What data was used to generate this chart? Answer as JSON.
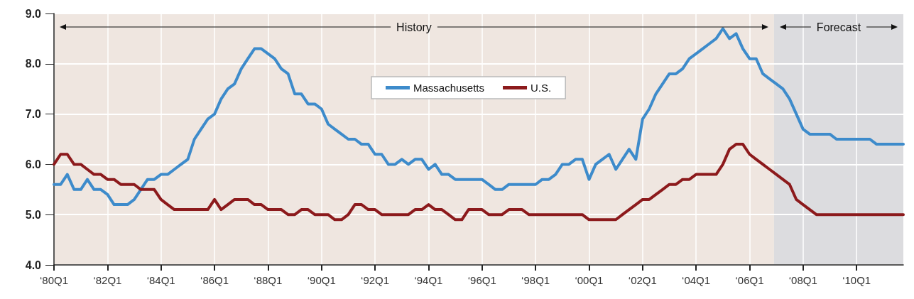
{
  "chart_data": {
    "type": "line",
    "xlim": [
      "1980-01",
      "2011-10"
    ],
    "xticks": [
      {
        "value": "1980-01",
        "label": "‘80Q1"
      },
      {
        "value": "1982-01",
        "label": "‘82Q1"
      },
      {
        "value": "1984-01",
        "label": "‘84Q1"
      },
      {
        "value": "1986-01",
        "label": "‘86Q1"
      },
      {
        "value": "1988-01",
        "label": "‘88Q1"
      },
      {
        "value": "1990-01",
        "label": "‘90Q1"
      },
      {
        "value": "1992-01",
        "label": "‘92Q1"
      },
      {
        "value": "1994-01",
        "label": "‘94Q1"
      },
      {
        "value": "1996-01",
        "label": "‘96Q1"
      },
      {
        "value": "1998-01",
        "label": "‘98Q1"
      },
      {
        "value": "2000-01",
        "label": "‘00Q1"
      },
      {
        "value": "2002-01",
        "label": "‘02Q1"
      },
      {
        "value": "2004-01",
        "label": "‘04Q1"
      },
      {
        "value": "2006-01",
        "label": "‘06Q1"
      },
      {
        "value": "2008-01",
        "label": "‘08Q1"
      },
      {
        "value": "2010-01",
        "label": "‘10Q1"
      }
    ],
    "ylim": [
      4,
      9
    ],
    "yticks": [
      {
        "value": 4,
        "label": "4.0"
      },
      {
        "value": 5,
        "label": "5.0"
      },
      {
        "value": 6,
        "label": "6.0"
      },
      {
        "value": 7,
        "label": "7.0"
      },
      {
        "value": 8,
        "label": "8.0"
      },
      {
        "value": 9,
        "label": "9.0"
      }
    ],
    "grid": true,
    "legend": "top",
    "marker": "none",
    "line_style": "solid",
    "bands": [
      {
        "axis": "x",
        "from": "1980-01",
        "to": "2006-12",
        "label": "History",
        "color": "#efe6e0"
      },
      {
        "axis": "x",
        "from": "2006-12",
        "to": "2011-10",
        "label": "Forecast",
        "color": "#dcdcdf"
      }
    ],
    "series": [
      {
        "name": "Massachusetts",
        "color": "#3d8bcb",
        "values": [
          5.6,
          5.6,
          5.8,
          5.5,
          5.5,
          5.7,
          5.5,
          5.5,
          5.4,
          5.2,
          5.2,
          5.2,
          5.3,
          5.5,
          5.7,
          5.7,
          5.8,
          5.8,
          5.9,
          6.0,
          6.1,
          6.5,
          6.7,
          6.9,
          7.0,
          7.3,
          7.5,
          7.6,
          7.9,
          8.1,
          8.3,
          8.3,
          8.2,
          8.1,
          7.9,
          7.8,
          7.4,
          7.4,
          7.2,
          7.2,
          7.1,
          6.8,
          6.7,
          6.6,
          6.5,
          6.5,
          6.4,
          6.4,
          6.2,
          6.2,
          6.0,
          6.0,
          6.1,
          6.0,
          6.1,
          6.1,
          5.9,
          6.0,
          5.8,
          5.8,
          5.7,
          5.7,
          5.7,
          5.7,
          5.7,
          5.6,
          5.5,
          5.5,
          5.6,
          5.6,
          5.6,
          5.6,
          5.6,
          5.7,
          5.7,
          5.8,
          6.0,
          6.0,
          6.1,
          6.1,
          5.7,
          6.0,
          6.1,
          6.2,
          5.9,
          6.1,
          6.3,
          6.1,
          6.9,
          7.1,
          7.4,
          7.6,
          7.8,
          7.8,
          7.9,
          8.1,
          8.2,
          8.3,
          8.4,
          8.5,
          8.7,
          8.5,
          8.6,
          8.3,
          8.1,
          8.1,
          7.8,
          7.7,
          7.6,
          7.5,
          7.3,
          7.0,
          6.7,
          6.6,
          6.6,
          6.6,
          6.6,
          6.5,
          6.5,
          6.5,
          6.5,
          6.5,
          6.5,
          6.4,
          6.4,
          6.4,
          6.4,
          6.4
        ]
      },
      {
        "name": "U.S.",
        "color": "#8c1a1c",
        "values": [
          6.0,
          6.2,
          6.2,
          6.0,
          6.0,
          5.9,
          5.8,
          5.8,
          5.7,
          5.7,
          5.6,
          5.6,
          5.6,
          5.5,
          5.5,
          5.5,
          5.3,
          5.2,
          5.1,
          5.1,
          5.1,
          5.1,
          5.1,
          5.1,
          5.3,
          5.1,
          5.2,
          5.3,
          5.3,
          5.3,
          5.2,
          5.2,
          5.1,
          5.1,
          5.1,
          5.0,
          5.0,
          5.1,
          5.1,
          5.0,
          5.0,
          5.0,
          4.9,
          4.9,
          5.0,
          5.2,
          5.2,
          5.1,
          5.1,
          5.0,
          5.0,
          5.0,
          5.0,
          5.0,
          5.1,
          5.1,
          5.2,
          5.1,
          5.1,
          5.0,
          4.9,
          4.9,
          5.1,
          5.1,
          5.1,
          5.0,
          5.0,
          5.0,
          5.1,
          5.1,
          5.1,
          5.0,
          5.0,
          5.0,
          5.0,
          5.0,
          5.0,
          5.0,
          5.0,
          5.0,
          4.9,
          4.9,
          4.9,
          4.9,
          4.9,
          5.0,
          5.1,
          5.2,
          5.3,
          5.3,
          5.4,
          5.5,
          5.6,
          5.6,
          5.7,
          5.7,
          5.8,
          5.8,
          5.8,
          5.8,
          6.0,
          6.3,
          6.4,
          6.4,
          6.2,
          6.1,
          6.0,
          5.9,
          5.8,
          5.7,
          5.6,
          5.3,
          5.2,
          5.1,
          5.0,
          5.0,
          5.0,
          5.0,
          5.0,
          5.0,
          5.0,
          5.0,
          5.0,
          5.0,
          5.0,
          5.0,
          5.0,
          5.0
        ]
      }
    ],
    "x": [
      "1980-01",
      "1980-04",
      "1980-07",
      "1980-10",
      "1981-01",
      "1981-04",
      "1981-07",
      "1981-10",
      "1982-01",
      "1982-04",
      "1982-07",
      "1982-10",
      "1983-01",
      "1983-04",
      "1983-07",
      "1983-10",
      "1984-01",
      "1984-04",
      "1984-07",
      "1984-10",
      "1985-01",
      "1985-04",
      "1985-07",
      "1985-10",
      "1986-01",
      "1986-04",
      "1986-07",
      "1986-10",
      "1987-01",
      "1987-04",
      "1987-07",
      "1987-10",
      "1988-01",
      "1988-04",
      "1988-07",
      "1988-10",
      "1989-01",
      "1989-04",
      "1989-07",
      "1989-10",
      "1990-01",
      "1990-04",
      "1990-07",
      "1990-10",
      "1991-01",
      "1991-04",
      "1991-07",
      "1991-10",
      "1992-01",
      "1992-04",
      "1992-07",
      "1992-10",
      "1993-01",
      "1993-04",
      "1993-07",
      "1993-10",
      "1994-01",
      "1994-04",
      "1994-07",
      "1994-10",
      "1995-01",
      "1995-04",
      "1995-07",
      "1995-10",
      "1996-01",
      "1996-04",
      "1996-07",
      "1996-10",
      "1997-01",
      "1997-04",
      "1997-07",
      "1997-10",
      "1998-01",
      "1998-04",
      "1998-07",
      "1998-10",
      "1999-01",
      "1999-04",
      "1999-07",
      "1999-10",
      "2000-01",
      "2000-04",
      "2000-07",
      "2000-10",
      "2001-01",
      "2001-04",
      "2001-07",
      "2001-10",
      "2002-01",
      "2002-04",
      "2002-07",
      "2002-10",
      "2003-01",
      "2003-04",
      "2003-07",
      "2003-10",
      "2004-01",
      "2004-04",
      "2004-07",
      "2004-10",
      "2005-01",
      "2005-04",
      "2005-07",
      "2005-10",
      "2006-01",
      "2006-04",
      "2006-07",
      "2006-10",
      "2007-01",
      "2007-04",
      "2007-07",
      "2007-10",
      "2008-01",
      "2008-04",
      "2008-07",
      "2008-10",
      "2009-01",
      "2009-04",
      "2009-07",
      "2009-10",
      "2010-01",
      "2010-04",
      "2010-07",
      "2010-10",
      "2011-01",
      "2011-04",
      "2011-07",
      "2011-10"
    ]
  }
}
